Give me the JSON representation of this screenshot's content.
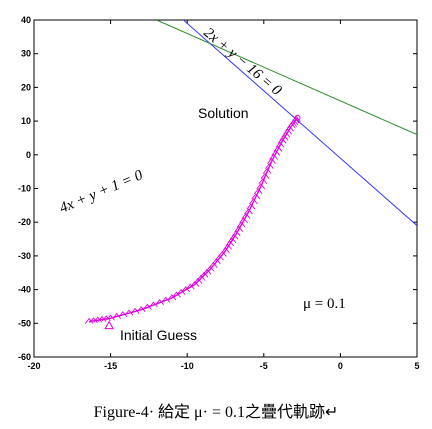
{
  "chart_data": {
    "type": "line",
    "title": "",
    "xlabel": "",
    "ylabel": "",
    "xlim": [
      -20,
      5
    ],
    "ylim": [
      -60,
      40
    ],
    "x_ticks": [
      "-20",
      "-15",
      "-10",
      "-5",
      "0",
      "5"
    ],
    "y_ticks": [
      "40",
      "30",
      "20",
      "10",
      "0",
      "-10",
      "-20",
      "-30",
      "-40",
      "-50",
      "-60"
    ],
    "grid": false,
    "series": [
      {
        "equation": "4x + y + 1 = 0",
        "color": "#3a3aff",
        "x": [
          -20,
          5
        ],
        "y": [
          79,
          -21
        ]
      },
      {
        "equation": "2x + y − 16 = 0",
        "color": "#2e8b2e",
        "x": [
          -12,
          5
        ],
        "y": [
          40,
          6
        ]
      },
      {
        "color": "#e000e0",
        "x": [
          -16.4,
          -15.0,
          -13.0,
          -11.0,
          -9.5,
          -8.5,
          -7.5,
          -6.8,
          -6.0,
          -5.2,
          -4.5,
          -3.8,
          -3.2,
          -2.8
        ],
        "y": [
          -49.5,
          -48.5,
          -46.0,
          -42.5,
          -38.5,
          -34.0,
          -28.5,
          -23.5,
          -17.0,
          -9.5,
          -2.0,
          4.0,
          8.5,
          11.0
        ]
      }
    ],
    "annotations": [
      {
        "text": "Solution",
        "x": -9,
        "y": 12
      },
      {
        "text": "Initial Guess",
        "x": -14.5,
        "y": -54
      },
      {
        "text": "μ = 0.1",
        "x": -2.5,
        "y": -43
      }
    ],
    "line_label_4x": "4x + y + 1 = 0",
    "line_label_2x": "2x + y − 16 = 0"
  },
  "caption": "Figure-4· 給定 μ· = 0.1之疊代軌跡↵"
}
